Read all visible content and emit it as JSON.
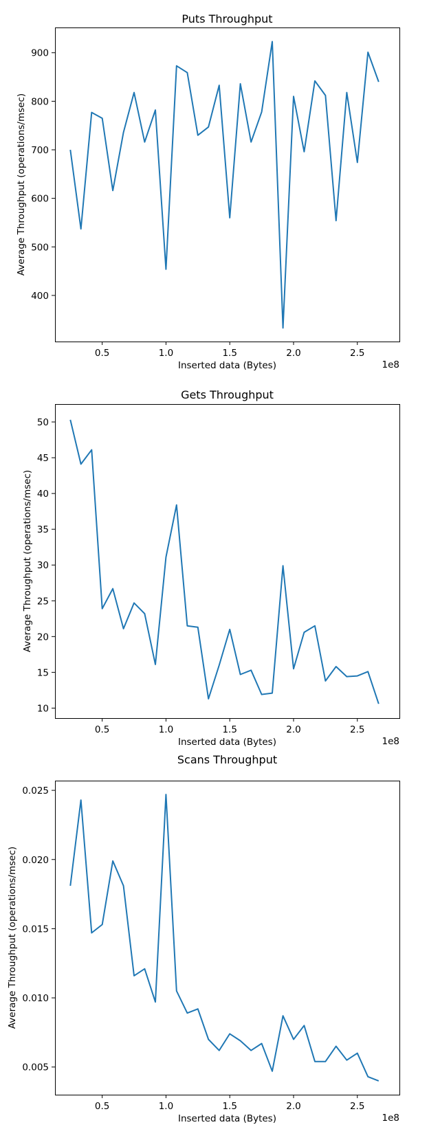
{
  "chart_data": [
    {
      "type": "line",
      "title": "Puts Throughput",
      "xlabel": "Inserted data (Bytes)",
      "ylabel": "Average Throughput (operations/msec)",
      "x_offset_label": "1e8",
      "xlim": [
        0.13,
        2.83
      ],
      "ylim": [
        305,
        952
      ],
      "xticks": [
        0.5,
        1.0,
        1.5,
        2.0,
        2.5
      ],
      "xtick_labels": [
        "0.5",
        "1.0",
        "1.5",
        "2.0",
        "2.5"
      ],
      "yticks": [
        400,
        500,
        600,
        700,
        800,
        900
      ],
      "ytick_labels": [
        "400",
        "500",
        "600",
        "700",
        "800",
        "900"
      ],
      "color": "#1f77b4",
      "grid": false,
      "series": [
        {
          "x": [
            0.25,
            0.333,
            0.417,
            0.5,
            0.583,
            0.667,
            0.75,
            0.833,
            0.917,
            1.0,
            1.083,
            1.167,
            1.25,
            1.333,
            1.417,
            1.5,
            1.583,
            1.667,
            1.75,
            1.833,
            1.917,
            2.0,
            2.083,
            2.167,
            2.25,
            2.333,
            2.417,
            2.5,
            2.583,
            2.667
          ],
          "y": [
            700,
            537,
            777,
            765,
            616,
            736,
            818,
            716,
            782,
            454,
            873,
            859,
            730,
            747,
            833,
            560,
            836,
            716,
            778,
            923,
            333,
            810,
            696,
            842,
            812,
            554,
            818,
            674,
            901,
            840
          ]
        }
      ]
    },
    {
      "type": "line",
      "title": "Gets Throughput",
      "xlabel": "Inserted data (Bytes)",
      "ylabel": "Average Throughput (operations/msec)",
      "x_offset_label": "1e8",
      "xlim": [
        0.13,
        2.83
      ],
      "ylim": [
        8.6,
        52.5
      ],
      "xticks": [
        0.5,
        1.0,
        1.5,
        2.0,
        2.5
      ],
      "xtick_labels": [
        "0.5",
        "1.0",
        "1.5",
        "2.0",
        "2.5"
      ],
      "yticks": [
        10,
        15,
        20,
        25,
        30,
        35,
        40,
        45,
        50
      ],
      "ytick_labels": [
        "10",
        "15",
        "20",
        "25",
        "30",
        "35",
        "40",
        "45",
        "50"
      ],
      "color": "#1f77b4",
      "grid": false,
      "series": [
        {
          "x": [
            0.25,
            0.333,
            0.417,
            0.5,
            0.583,
            0.667,
            0.75,
            0.833,
            0.917,
            1.0,
            1.083,
            1.167,
            1.25,
            1.333,
            1.417,
            1.5,
            1.583,
            1.667,
            1.75,
            1.833,
            1.917,
            2.0,
            2.083,
            2.167,
            2.25,
            2.333,
            2.417,
            2.5,
            2.583,
            2.667
          ],
          "y": [
            50.3,
            44.1,
            46.1,
            23.9,
            26.7,
            21.1,
            24.7,
            23.2,
            16.1,
            31.1,
            38.4,
            21.5,
            21.3,
            11.3,
            16.0,
            21.0,
            14.7,
            15.3,
            11.9,
            12.1,
            29.9,
            15.5,
            20.6,
            21.5,
            13.8,
            15.8,
            14.4,
            14.5,
            15.1,
            10.6
          ]
        }
      ]
    },
    {
      "type": "line",
      "title": "Scans Throughput",
      "xlabel": "Inserted data (Bytes)",
      "ylabel": "Average Throughput (operations/msec)",
      "x_offset_label": "1e8",
      "xlim": [
        0.13,
        2.83
      ],
      "ylim": [
        0.003,
        0.0257
      ],
      "xticks": [
        0.5,
        1.0,
        1.5,
        2.0,
        2.5
      ],
      "xtick_labels": [
        "0.5",
        "1.0",
        "1.5",
        "2.0",
        "2.5"
      ],
      "yticks": [
        0.005,
        0.01,
        0.015,
        0.02,
        0.025
      ],
      "ytick_labels": [
        "0.005",
        "0.010",
        "0.015",
        "0.020",
        "0.025"
      ],
      "color": "#1f77b4",
      "grid": false,
      "series": [
        {
          "x": [
            0.25,
            0.333,
            0.417,
            0.5,
            0.583,
            0.667,
            0.75,
            0.833,
            0.917,
            1.0,
            1.083,
            1.167,
            1.25,
            1.333,
            1.417,
            1.5,
            1.583,
            1.667,
            1.75,
            1.833,
            1.917,
            2.0,
            2.083,
            2.167,
            2.25,
            2.333,
            2.417,
            2.5,
            2.583,
            2.667
          ],
          "y": [
            0.0181,
            0.0243,
            0.0147,
            0.0153,
            0.0199,
            0.0181,
            0.0116,
            0.0121,
            0.0097,
            0.0247,
            0.0105,
            0.0089,
            0.0092,
            0.007,
            0.0062,
            0.0074,
            0.0069,
            0.0062,
            0.0067,
            0.0047,
            0.0087,
            0.007,
            0.008,
            0.0054,
            0.0054,
            0.0065,
            0.0055,
            0.006,
            0.0043,
            0.004
          ]
        }
      ]
    }
  ]
}
